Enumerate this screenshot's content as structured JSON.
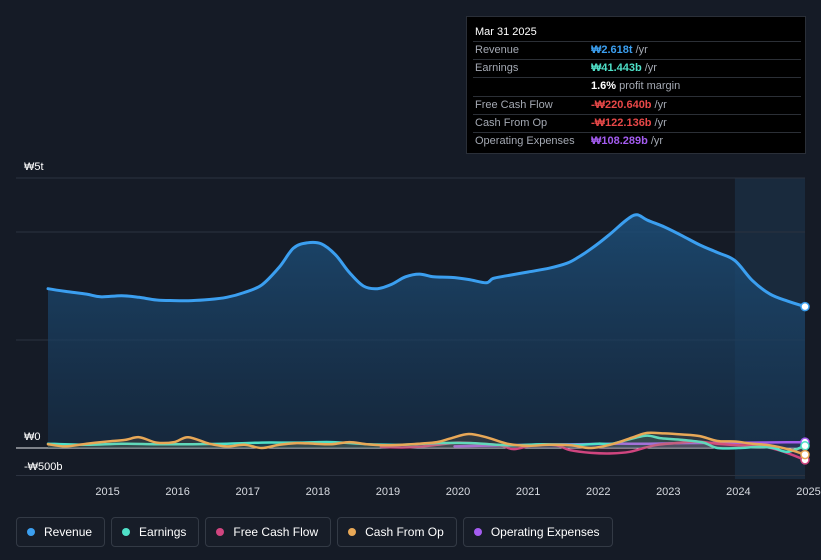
{
  "tooltip": {
    "date": "Mar 31 2025",
    "rows": [
      {
        "label": "Revenue",
        "value": "₩2.618t",
        "unit": "/yr",
        "color": "#3b9ff0"
      },
      {
        "label": "Earnings",
        "value": "₩41.443b",
        "unit": "/yr",
        "color": "#4fe0c8"
      },
      {
        "label": "",
        "value": "1.6%",
        "unit": "profit margin",
        "color": "#ffffff"
      },
      {
        "label": "Free Cash Flow",
        "value": "-₩220.640b",
        "unit": "/yr",
        "color": "#e84848"
      },
      {
        "label": "Cash From Op",
        "value": "-₩122.136b",
        "unit": "/yr",
        "color": "#e84848"
      },
      {
        "label": "Operating Expenses",
        "value": "₩108.289b",
        "unit": "/yr",
        "color": "#a45cf0"
      }
    ]
  },
  "legend": [
    {
      "label": "Revenue",
      "color": "#3b9ff0"
    },
    {
      "label": "Earnings",
      "color": "#4fe0c8"
    },
    {
      "label": "Free Cash Flow",
      "color": "#d0457f"
    },
    {
      "label": "Cash From Op",
      "color": "#e8a857"
    },
    {
      "label": "Operating Expenses",
      "color": "#a45cf0"
    }
  ],
  "chart_data": {
    "type": "area",
    "y_labels": {
      "top": "₩5t",
      "zero": "₩0",
      "bottom": "-₩500b"
    },
    "ylim": [
      -500,
      5000
    ],
    "x_ticks": [
      "2015",
      "2016",
      "2017",
      "2018",
      "2019",
      "2020",
      "2021",
      "2022",
      "2023",
      "2024",
      "2025"
    ],
    "x_range": [
      2014.45,
      2025.25
    ],
    "forecast_start": 2024.25,
    "series": [
      {
        "name": "Revenue",
        "color": "#3b9ff0",
        "x": [
          2014.45,
          2014.7,
          2015.0,
          2015.2,
          2015.5,
          2015.75,
          2016.0,
          2016.25,
          2016.5,
          2016.75,
          2017.0,
          2017.25,
          2017.5,
          2017.75,
          2017.95,
          2018.15,
          2018.35,
          2018.55,
          2018.75,
          2018.95,
          2019.15,
          2019.35,
          2019.55,
          2019.75,
          2019.95,
          2020.2,
          2020.45,
          2020.7,
          2020.8,
          2021.0,
          2021.3,
          2021.6,
          2021.85,
          2022.0,
          2022.2,
          2022.45,
          2022.7,
          2022.85,
          2023.0,
          2023.25,
          2023.5,
          2023.75,
          2024.0,
          2024.25,
          2024.5,
          2024.75,
          2025.0,
          2025.25
        ],
        "values": [
          2950,
          2900,
          2850,
          2800,
          2820,
          2790,
          2740,
          2730,
          2730,
          2750,
          2790,
          2880,
          3020,
          3350,
          3700,
          3800,
          3780,
          3580,
          3250,
          3000,
          2950,
          3030,
          3170,
          3220,
          3170,
          3160,
          3120,
          3060,
          3140,
          3190,
          3260,
          3330,
          3420,
          3520,
          3690,
          3940,
          4220,
          4320,
          4220,
          4090,
          3930,
          3760,
          3620,
          3470,
          3100,
          2850,
          2720,
          2618
        ]
      },
      {
        "name": "Earnings",
        "color": "#4fe0c8",
        "x": [
          2014.45,
          2015.0,
          2015.5,
          2016.0,
          2016.5,
          2017.0,
          2017.5,
          2018.0,
          2018.5,
          2019.0,
          2019.5,
          2020.0,
          2020.5,
          2021.0,
          2021.5,
          2022.0,
          2022.3,
          2022.5,
          2022.8,
          2023.0,
          2023.2,
          2023.5,
          2023.8,
          2024.0,
          2024.3,
          2024.6,
          2024.8,
          2025.0,
          2025.25
        ],
        "values": [
          80,
          60,
          80,
          70,
          70,
          80,
          100,
          100,
          110,
          70,
          60,
          90,
          90,
          50,
          70,
          60,
          80,
          80,
          180,
          230,
          180,
          150,
          100,
          0,
          0,
          20,
          0,
          -70,
          41
        ]
      },
      {
        "name": "Free Cash Flow",
        "color": "#d0457f",
        "x": [
          2019.2,
          2019.5,
          2019.8,
          2020.0,
          2020.3,
          2020.6,
          2020.9,
          2021.1,
          2021.4,
          2021.7,
          2021.9,
          2022.2,
          2022.5,
          2022.75,
          2022.95,
          2023.15,
          2023.4,
          2023.7,
          2024.0,
          2024.3,
          2024.6,
          2024.9,
          2025.25
        ],
        "values": [
          20,
          10,
          30,
          60,
          100,
          80,
          50,
          -20,
          60,
          50,
          -40,
          -90,
          -100,
          -70,
          0,
          60,
          90,
          120,
          80,
          50,
          40,
          -50,
          -220
        ]
      },
      {
        "name": "Cash From Op",
        "color": "#e8a857",
        "x": [
          2014.45,
          2014.7,
          2015.0,
          2015.3,
          2015.55,
          2015.75,
          2016.0,
          2016.25,
          2016.45,
          2016.75,
          2017.0,
          2017.25,
          2017.5,
          2017.75,
          2018.0,
          2018.25,
          2018.5,
          2018.75,
          2019.0,
          2019.25,
          2019.5,
          2019.75,
          2020.0,
          2020.2,
          2020.45,
          2020.7,
          2021.0,
          2021.3,
          2021.6,
          2021.9,
          2022.2,
          2022.5,
          2022.8,
          2023.0,
          2023.25,
          2023.5,
          2023.75,
          2024.0,
          2024.25,
          2024.5,
          2024.75,
          2025.0,
          2025.25
        ],
        "values": [
          70,
          30,
          80,
          120,
          150,
          200,
          100,
          110,
          200,
          80,
          30,
          60,
          0,
          60,
          90,
          80,
          70,
          110,
          70,
          50,
          60,
          80,
          110,
          180,
          260,
          200,
          80,
          40,
          60,
          50,
          0,
          70,
          200,
          280,
          270,
          250,
          220,
          130,
          120,
          80,
          50,
          -20,
          -122
        ]
      },
      {
        "name": "Operating Expenses",
        "color": "#a45cf0",
        "x": [
          2020.25,
          2020.6,
          2021.0,
          2021.5,
          2022.0,
          2022.5,
          2023.0,
          2023.5,
          2024.0,
          2024.5,
          2025.0,
          2025.25
        ],
        "values": [
          30,
          40,
          50,
          60,
          70,
          80,
          80,
          90,
          95,
          100,
          105,
          108
        ]
      }
    ]
  }
}
